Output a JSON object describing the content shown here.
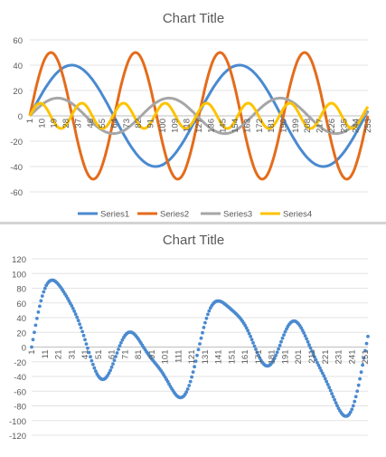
{
  "chart_data": [
    {
      "type": "line",
      "title": "Chart Title",
      "xlabel": "",
      "ylabel": "",
      "x_range": [
        1,
        253
      ],
      "ylim": [
        -60,
        60
      ],
      "y_ticks": [
        60,
        40,
        20,
        0,
        -20,
        -40,
        -60
      ],
      "x_ticks": [
        1,
        10,
        19,
        28,
        37,
        46,
        55,
        64,
        73,
        82,
        91,
        100,
        109,
        118,
        127,
        136,
        145,
        154,
        163,
        172,
        181,
        190,
        199,
        208,
        217,
        226,
        235,
        244,
        253
      ],
      "grid": true,
      "legend_position": "bottom",
      "series": [
        {
          "name": "Series1",
          "color": "#4a8ad0",
          "function": "sine",
          "amplitude": 40,
          "period": 125
        },
        {
          "name": "Series2",
          "color": "#e46c1b",
          "function": "sine",
          "amplitude": 50,
          "period": 63
        },
        {
          "name": "Series3",
          "color": "#a6a6a6",
          "function": "sine",
          "amplitude": 14,
          "period": 83
        },
        {
          "name": "Series4",
          "color": "#fdc300",
          "function": "sine",
          "amplitude": 10,
          "period": 31
        }
      ]
    },
    {
      "type": "scatter",
      "title": "Chart Title",
      "xlabel": "",
      "ylabel": "",
      "x_range": [
        1,
        253
      ],
      "ylim": [
        -120,
        120
      ],
      "y_ticks": [
        120,
        100,
        80,
        60,
        40,
        20,
        0,
        -20,
        -40,
        -60,
        -80,
        -100,
        -120
      ],
      "x_ticks": [
        1,
        11,
        21,
        31,
        41,
        51,
        61,
        71,
        81,
        91,
        101,
        111,
        121,
        131,
        141,
        151,
        161,
        171,
        181,
        191,
        201,
        211,
        221,
        231,
        241,
        251
      ],
      "grid": true,
      "series": [
        {
          "color": "#4a8ad0",
          "derived_as": "sum of Series1, Series2, Series3, Series4"
        }
      ]
    }
  ]
}
